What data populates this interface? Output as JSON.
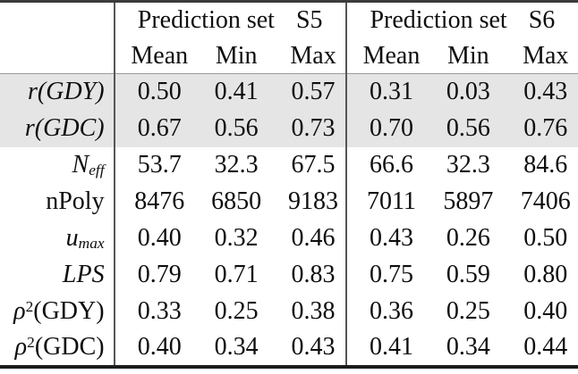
{
  "table": {
    "corner_label": "",
    "groups": [
      {
        "title": "Prediction set",
        "set": "S5",
        "columns": [
          "Mean",
          "Min",
          "Max"
        ]
      },
      {
        "title": "Prediction set",
        "set": "S6",
        "columns": [
          "Mean",
          "Min",
          "Max"
        ]
      }
    ],
    "rows": [
      {
        "label_parts": [
          {
            "text": "r(GDY)",
            "italic": true
          }
        ],
        "shaded": true,
        "values": {
          "S5": [
            "0.50",
            "0.41",
            "0.57"
          ],
          "S6": [
            "0.31",
            "0.03",
            "0.43"
          ]
        }
      },
      {
        "label_parts": [
          {
            "text": "r(GDC)",
            "italic": true
          }
        ],
        "shaded": true,
        "values": {
          "S5": [
            "0.67",
            "0.56",
            "0.73"
          ],
          "S6": [
            "0.70",
            "0.56",
            "0.76"
          ]
        }
      },
      {
        "label_parts": [
          {
            "text": "N",
            "italic": true
          },
          {
            "text": "eff",
            "italic": true,
            "script": "sub"
          }
        ],
        "shaded": false,
        "values": {
          "S5": [
            "53.7",
            "32.3",
            "67.5"
          ],
          "S6": [
            "66.6",
            "32.3",
            "84.6"
          ]
        }
      },
      {
        "label_parts": [
          {
            "text": "nPoly"
          }
        ],
        "shaded": false,
        "values": {
          "S5": [
            "8476",
            "6850",
            "9183"
          ],
          "S6": [
            "7011",
            "5897",
            "7406"
          ]
        }
      },
      {
        "label_parts": [
          {
            "text": "u",
            "italic": true
          },
          {
            "text": "max",
            "italic": true,
            "script": "sub"
          }
        ],
        "shaded": false,
        "values": {
          "S5": [
            "0.40",
            "0.32",
            "0.46"
          ],
          "S6": [
            "0.43",
            "0.26",
            "0.50"
          ]
        }
      },
      {
        "label_parts": [
          {
            "text": "LPS",
            "italic": true
          }
        ],
        "shaded": false,
        "values": {
          "S5": [
            "0.79",
            "0.71",
            "0.83"
          ],
          "S6": [
            "0.75",
            "0.59",
            "0.80"
          ]
        }
      },
      {
        "label_parts": [
          {
            "text": "ρ",
            "italic": true
          },
          {
            "text": "2",
            "script": "sup"
          },
          {
            "text": "(GDY)"
          }
        ],
        "shaded": false,
        "values": {
          "S5": [
            "0.33",
            "0.25",
            "0.38"
          ],
          "S6": [
            "0.36",
            "0.25",
            "0.40"
          ]
        }
      },
      {
        "label_parts": [
          {
            "text": "ρ",
            "italic": true
          },
          {
            "text": "2",
            "script": "sup"
          },
          {
            "text": "(GDC)"
          }
        ],
        "shaded": false,
        "values": {
          "S5": [
            "0.40",
            "0.34",
            "0.43"
          ],
          "S6": [
            "0.41",
            "0.34",
            "0.44"
          ]
        }
      }
    ],
    "colors": {
      "row_shading": "#e5e5e5",
      "border_heavy_top": "#3b3b3b",
      "border_heavy_bottom": "#1c1c1c",
      "border_vertical": "#565656",
      "border_header_separator": "#9a9a9a",
      "text": "#0e0e0e",
      "background": "#ffffff"
    }
  }
}
